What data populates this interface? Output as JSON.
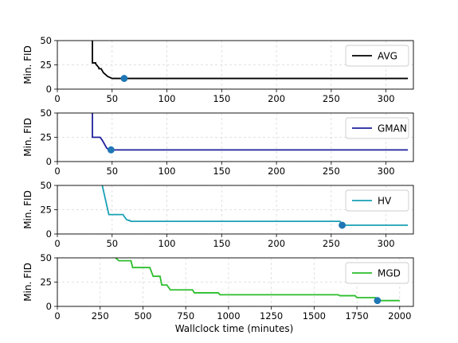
{
  "chart_data": [
    {
      "type": "line",
      "series": [
        {
          "name": "AVG",
          "color": "#000000",
          "x": [
            32,
            32,
            35,
            35,
            38,
            38,
            40,
            42,
            44,
            46,
            48,
            50,
            320
          ],
          "y": [
            50,
            27,
            27,
            26,
            22,
            21,
            21,
            17,
            15,
            13,
            12,
            11,
            11
          ]
        }
      ],
      "marker": {
        "x": 61,
        "y": 11
      },
      "ylabel": "Min. FID",
      "xlim": [
        0,
        325
      ],
      "ylim": [
        0,
        50
      ],
      "xticks": [
        0,
        50,
        100,
        150,
        200,
        250,
        300
      ],
      "yticks": [
        0,
        25,
        50
      ],
      "grid": true,
      "legend": "right"
    },
    {
      "type": "line",
      "series": [
        {
          "name": "GMAN",
          "color": "#1f1f9e",
          "x": [
            32,
            32,
            39,
            41,
            43,
            45,
            47,
            320
          ],
          "y": [
            50,
            25,
            25,
            22,
            18,
            14,
            12,
            12
          ]
        }
      ],
      "marker": {
        "x": 49,
        "y": 12
      },
      "ylabel": "Min. FID",
      "xlim": [
        0,
        325
      ],
      "ylim": [
        0,
        50
      ],
      "xticks": [
        0,
        50,
        100,
        150,
        200,
        250,
        300
      ],
      "yticks": [
        0,
        25,
        50
      ],
      "grid": true,
      "legend": "right"
    },
    {
      "type": "line",
      "series": [
        {
          "name": "HV",
          "color": "#1aa0b5",
          "x": [
            41,
            47,
            47,
            60,
            61,
            63,
            65,
            66,
            67,
            69,
            70,
            258,
            260,
            320
          ],
          "y": [
            50,
            20,
            20,
            20,
            18,
            15,
            14,
            14,
            13,
            13,
            13,
            13,
            9,
            9
          ]
        }
      ],
      "marker": {
        "x": 260,
        "y": 9
      },
      "ylabel": "Min. FID",
      "xlim": [
        0,
        325
      ],
      "ylim": [
        0,
        50
      ],
      "xticks": [
        0,
        50,
        100,
        150,
        200,
        250,
        300
      ],
      "yticks": [
        0,
        25,
        50
      ],
      "grid": true,
      "legend": "right"
    },
    {
      "type": "line",
      "series": [
        {
          "name": "MGD",
          "color": "#2cbe2c",
          "x": [
            340,
            360,
            370,
            430,
            440,
            540,
            560,
            600,
            610,
            640,
            660,
            790,
            800,
            940,
            950,
            1640,
            1650,
            1740,
            1750,
            1860,
            1870,
            2000
          ],
          "y": [
            50,
            47,
            47,
            47,
            40,
            40,
            31,
            31,
            22,
            22,
            17,
            17,
            14,
            14,
            12,
            12,
            11,
            11,
            9,
            9,
            6,
            6
          ]
        }
      ],
      "marker": {
        "x": 1870,
        "y": 6
      },
      "ylabel": "Min. FID",
      "xlabel": "Wallclock time (minutes)",
      "xlim": [
        0,
        2080
      ],
      "ylim": [
        0,
        50
      ],
      "xticks": [
        0,
        250,
        500,
        750,
        1000,
        1250,
        1500,
        1750,
        2000
      ],
      "yticks": [
        0,
        25,
        50
      ],
      "grid": true,
      "legend": "right"
    }
  ]
}
